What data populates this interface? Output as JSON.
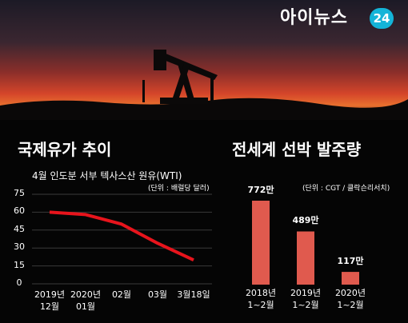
{
  "header": {
    "logo": "아이뉴스",
    "badge": "24"
  },
  "chart_data": [
    {
      "type": "line",
      "title": "국제유가 추이",
      "subtitle": "4월 인도분 서부 텍사스산 원유(WTI)",
      "unit": "(단위 : 배럴당 달러)",
      "categories": [
        "2019년\n12월",
        "2020년\n01월",
        "02월",
        "03월",
        "3월18일"
      ],
      "values": [
        60,
        58,
        50,
        34,
        20
      ],
      "color": "#e8141c",
      "ylim": [
        0,
        75
      ],
      "yticks": [
        0,
        15,
        30,
        45,
        60,
        75
      ],
      "grid": true
    },
    {
      "type": "bar",
      "title": "전세계 선박 발주량",
      "unit": "(단위 : CGT / 클락슨리서치)",
      "categories": [
        "2018년\n1~2월",
        "2019년\n1~2월",
        "2020년\n1~2월"
      ],
      "values": [
        772,
        489,
        117
      ],
      "value_labels": [
        "772만",
        "489만",
        "117만"
      ],
      "color": "#e05a4e"
    }
  ]
}
